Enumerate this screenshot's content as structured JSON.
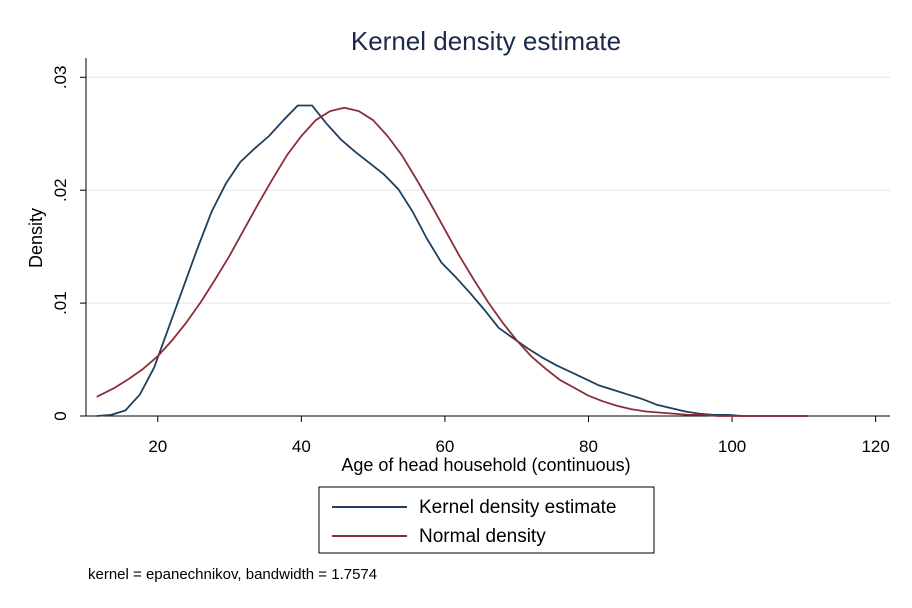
{
  "chart_data": {
    "type": "line",
    "title": "Kernel density estimate",
    "xlabel": "Age of head household (continuous)",
    "ylabel": "Density",
    "xlim": [
      10,
      122
    ],
    "ylim": [
      0,
      0.031
    ],
    "x_ticks": [
      20,
      40,
      60,
      80,
      100,
      120
    ],
    "x_tick_labels": [
      "20",
      "40",
      "60",
      "80",
      "100",
      "120"
    ],
    "y_ticks": [
      0,
      0.01,
      0.02,
      0.03
    ],
    "y_tick_labels": [
      "0",
      ".01",
      ".02",
      ".03"
    ],
    "grid": true,
    "legend_position": "bottom-center",
    "series": [
      {
        "name": "Kernel density estimate",
        "color": "#1f3f5f",
        "x": [
          11.5,
          13.5,
          15.5,
          17.5,
          19.5,
          21.5,
          23.5,
          25.5,
          27.5,
          29.5,
          31.5,
          33.5,
          35.5,
          37.5,
          39.5,
          41.5,
          43.5,
          45.5,
          47.5,
          49.5,
          51.5,
          53.5,
          55.5,
          57.5,
          59.5,
          61.5,
          63.5,
          65.5,
          67.5,
          69.5,
          71.5,
          73.5,
          75.5,
          77.5,
          79.5,
          81.5,
          83.5,
          85.5,
          87.5,
          89.5,
          91.5,
          93.5,
          95.5,
          97.5,
          99.5,
          101.5,
          103.5,
          105.5,
          107.5,
          110.5
        ],
        "y": [
          0.0,
          0.0001,
          0.0005,
          0.0019,
          0.0043,
          0.0078,
          0.0113,
          0.0148,
          0.0181,
          0.0206,
          0.0225,
          0.0237,
          0.0248,
          0.0262,
          0.0275,
          0.0275,
          0.0259,
          0.0245,
          0.0234,
          0.0224,
          0.0214,
          0.0201,
          0.0181,
          0.0157,
          0.0136,
          0.0123,
          0.0109,
          0.0094,
          0.0078,
          0.0069,
          0.006,
          0.0052,
          0.0045,
          0.0039,
          0.0033,
          0.0027,
          0.0023,
          0.0019,
          0.0015,
          0.001,
          0.0007,
          0.0004,
          0.0002,
          0.0001,
          0.0001,
          0.0,
          0.0,
          0.0,
          0.0,
          0.0
        ]
      },
      {
        "name": "Normal density",
        "color": "#8b2e3a",
        "x": [
          11.5,
          14,
          16,
          18,
          20,
          22,
          24,
          26,
          28,
          30,
          32,
          34,
          36,
          38,
          40,
          42,
          44,
          46,
          48,
          50,
          52,
          54,
          56,
          58,
          60,
          62,
          64,
          66,
          68,
          70,
          72,
          74,
          76,
          78,
          80,
          82,
          84,
          86,
          88,
          90,
          92,
          94,
          96,
          98,
          100,
          102,
          104,
          106,
          108,
          110.5
        ],
        "y": [
          0.0017,
          0.0025,
          0.0033,
          0.0042,
          0.0053,
          0.0067,
          0.0083,
          0.0101,
          0.0121,
          0.0142,
          0.0165,
          0.0188,
          0.021,
          0.0231,
          0.0248,
          0.0262,
          0.027,
          0.0273,
          0.027,
          0.0262,
          0.0248,
          0.0231,
          0.021,
          0.0188,
          0.0165,
          0.0142,
          0.0121,
          0.0101,
          0.0083,
          0.0067,
          0.0053,
          0.0042,
          0.0032,
          0.0025,
          0.0018,
          0.0013,
          0.0009,
          0.0006,
          0.0004,
          0.0003,
          0.0002,
          0.0001,
          0.0001,
          0.0,
          0.0,
          0.0,
          0.0,
          0.0,
          0.0,
          0.0
        ]
      }
    ],
    "note": "kernel = epanechnikov, bandwidth = 1.7574"
  }
}
